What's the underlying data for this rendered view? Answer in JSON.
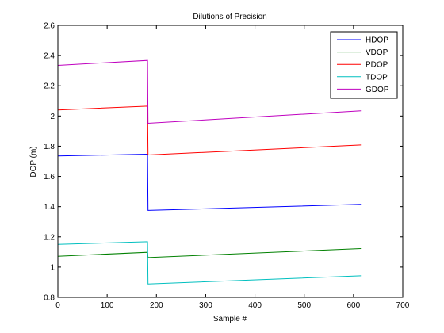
{
  "chart_data": {
    "type": "line",
    "title": "Dilutions of Precision",
    "xlabel": "Sample #",
    "ylabel": "DOP (m)",
    "xlim": [
      0,
      700
    ],
    "ylim": [
      0.8,
      2.6
    ],
    "xticks": [
      0,
      100,
      200,
      300,
      400,
      500,
      600,
      700
    ],
    "yticks": [
      0.8,
      1,
      1.2,
      1.4,
      1.6,
      1.8,
      2,
      2.2,
      2.4,
      2.6
    ],
    "xtick_labels": [
      "0",
      "100",
      "200",
      "300",
      "400",
      "500",
      "600",
      "700"
    ],
    "ytick_labels": [
      "0.8",
      "1",
      "1.2",
      "1.4",
      "1.6",
      "1.8",
      "2",
      "2.2",
      "2.4",
      "2.6"
    ],
    "grid": false,
    "legend_position": "top-right",
    "series": [
      {
        "name": "HDOP",
        "color": "#0000ff",
        "points": [
          [
            0,
            1.735
          ],
          [
            182,
            1.747
          ],
          [
            183,
            1.375
          ],
          [
            615,
            1.415
          ]
        ]
      },
      {
        "name": "VDOP",
        "color": "#008000",
        "points": [
          [
            0,
            1.072
          ],
          [
            182,
            1.098
          ],
          [
            183,
            1.063
          ],
          [
            615,
            1.123
          ]
        ]
      },
      {
        "name": "PDOP",
        "color": "#ff0000",
        "points": [
          [
            0,
            2.04
          ],
          [
            182,
            2.065
          ],
          [
            183,
            1.742
          ],
          [
            615,
            1.808
          ]
        ]
      },
      {
        "name": "TDOP",
        "color": "#00bfbf",
        "points": [
          [
            0,
            1.15
          ],
          [
            182,
            1.168
          ],
          [
            183,
            0.888
          ],
          [
            615,
            0.942
          ]
        ]
      },
      {
        "name": "GDOP",
        "color": "#bf00bf",
        "points": [
          [
            0,
            2.335
          ],
          [
            182,
            2.368
          ],
          [
            183,
            1.952
          ],
          [
            615,
            2.035
          ]
        ]
      }
    ]
  }
}
